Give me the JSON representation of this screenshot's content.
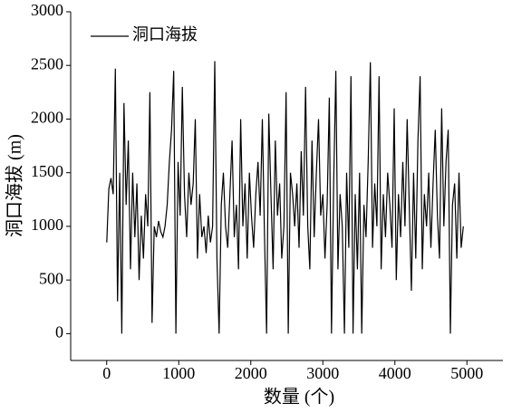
{
  "chart_data": {
    "type": "line",
    "xlabel": "数量 (个)",
    "ylabel": "洞口海拔 (m)",
    "x": [
      0,
      30,
      60,
      90,
      120,
      150,
      180,
      210,
      240,
      270,
      300,
      330,
      360,
      390,
      420,
      450,
      480,
      510,
      540,
      570,
      600,
      630,
      660,
      690,
      720,
      750,
      780,
      810,
      840,
      870,
      900,
      930,
      960,
      990,
      1020,
      1050,
      1080,
      1110,
      1140,
      1170,
      1200,
      1230,
      1260,
      1290,
      1320,
      1350,
      1380,
      1410,
      1440,
      1470,
      1500,
      1530,
      1560,
      1590,
      1620,
      1650,
      1680,
      1710,
      1740,
      1770,
      1800,
      1830,
      1860,
      1890,
      1920,
      1950,
      1980,
      2010,
      2040,
      2070,
      2100,
      2130,
      2160,
      2190,
      2220,
      2250,
      2280,
      2310,
      2340,
      2370,
      2400,
      2430,
      2460,
      2490,
      2520,
      2550,
      2580,
      2610,
      2640,
      2670,
      2700,
      2730,
      2760,
      2790,
      2820,
      2850,
      2880,
      2910,
      2940,
      2970,
      3000,
      3030,
      3060,
      3090,
      3120,
      3150,
      3180,
      3210,
      3240,
      3270,
      3300,
      3330,
      3360,
      3390,
      3420,
      3450,
      3480,
      3510,
      3540,
      3570,
      3600,
      3630,
      3660,
      3690,
      3720,
      3750,
      3780,
      3810,
      3840,
      3870,
      3900,
      3930,
      3960,
      3990,
      4020,
      4050,
      4080,
      4110,
      4140,
      4170,
      4200,
      4230,
      4260,
      4290,
      4320,
      4350,
      4380,
      4410,
      4440,
      4470,
      4500,
      4530,
      4560,
      4590,
      4620,
      4650,
      4680,
      4710,
      4740,
      4770,
      4800,
      4830,
      4860,
      4890,
      4920,
      4950
    ],
    "series": [
      {
        "name": "洞口海拔",
        "color": "#000000",
        "values": [
          850,
          1350,
          1450,
          1300,
          2470,
          300,
          1500,
          0,
          2150,
          1200,
          1800,
          600,
          1500,
          900,
          1400,
          500,
          1100,
          700,
          1300,
          1000,
          2250,
          100,
          1000,
          900,
          1050,
          950,
          900,
          1000,
          1200,
          1600,
          1900,
          2450,
          0,
          1600,
          1100,
          2300,
          1300,
          900,
          1500,
          1200,
          1400,
          2000,
          700,
          1300,
          900,
          1000,
          750,
          1100,
          850,
          1000,
          2540,
          700,
          0,
          1200,
          1500,
          1000,
          800,
          1300,
          1800,
          900,
          1200,
          600,
          2000,
          1000,
          1400,
          700,
          1500,
          1100,
          800,
          1300,
          1600,
          1100,
          2000,
          900,
          0,
          2050,
          1300,
          600,
          1800,
          1100,
          1400,
          700,
          1000,
          2250,
          0,
          1500,
          1300,
          1000,
          1400,
          800,
          1700,
          1100,
          2300,
          1000,
          600,
          1800,
          900,
          1500,
          2000,
          1100,
          1300,
          700,
          1200,
          2200,
          0,
          1400,
          2450,
          600,
          1300,
          1000,
          0,
          1500,
          800,
          2400,
          0,
          1300,
          600,
          1500,
          0,
          1200,
          900,
          1600,
          2530,
          800,
          1400,
          1000,
          2400,
          600,
          1300,
          900,
          1500,
          1200,
          800,
          2100,
          500,
          1300,
          900,
          1600,
          1000,
          2000,
          1200,
          400,
          1500,
          700,
          1800,
          2400,
          600,
          1300,
          1000,
          1500,
          800,
          1400,
          1900,
          1100,
          700,
          2100,
          1000,
          1600,
          1900,
          0,
          1200,
          1400,
          700,
          1500,
          800,
          1000
        ]
      }
    ],
    "xlim": [
      -500,
      5500
    ],
    "xticks": [
      0,
      1000,
      2000,
      3000,
      4000,
      5000
    ],
    "ylim": [
      -250,
      3000
    ],
    "yticks": [
      0,
      500,
      1000,
      1500,
      2000,
      2500,
      3000
    ],
    "legend": "upper left"
  }
}
